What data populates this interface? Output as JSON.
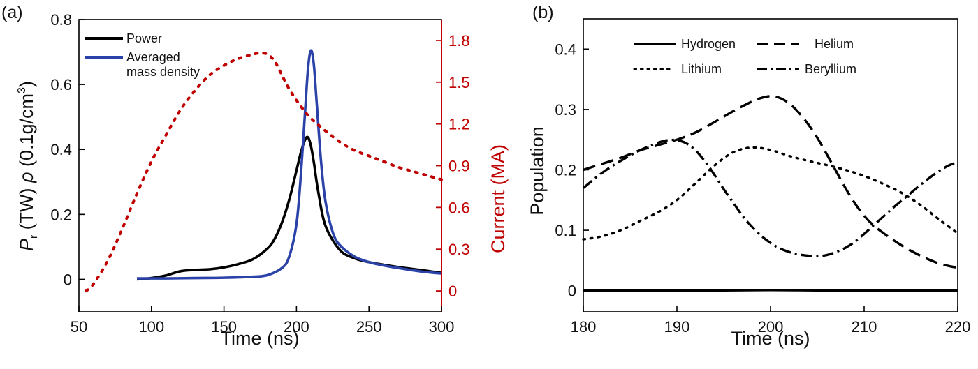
{
  "chart_data": [
    {
      "type": "line",
      "panel_label": "(a)",
      "xlabel": "Time (ns)",
      "ylabel_parts": [
        "P",
        "r",
        " (TW)  ",
        "ρ",
        " (0.1g/cm",
        "3",
        ")"
      ],
      "y2label": "Current (MA)",
      "xlim": [
        50,
        300
      ],
      "ylim": [
        -0.1,
        0.8
      ],
      "y2lim": [
        -0.15,
        1.95
      ],
      "xticks": [
        "50",
        "100",
        "150",
        "200",
        "250",
        "300"
      ],
      "xtick_values": [
        50,
        100,
        150,
        200,
        250,
        300
      ],
      "yticks": [
        "0",
        "0.2",
        "0.4",
        "0.6",
        "0.8"
      ],
      "ytick_values": [
        0,
        0.2,
        0.4,
        0.6,
        0.8
      ],
      "y2ticks": [
        "0",
        "0.3",
        "0.6",
        "0.9",
        "1.2",
        "1.5",
        "1.8"
      ],
      "y2tick_values": [
        0,
        0.3,
        0.6,
        0.9,
        1.2,
        1.5,
        1.8
      ],
      "legend": {
        "position": "top-left",
        "entries": [
          "Power",
          "Averaged mass density"
        ],
        "entry_lines": [
          [
            "Power"
          ],
          [
            "Averaged",
            "mass density"
          ]
        ]
      },
      "series": [
        {
          "name": "Power",
          "color": "#000000",
          "dash": "solid",
          "axis": "left",
          "x": [
            90,
            100,
            110,
            120,
            130,
            140,
            150,
            160,
            170,
            180,
            185,
            190,
            195,
            200,
            203,
            206,
            208,
            210,
            212,
            215,
            220,
            230,
            240,
            250,
            260,
            270,
            280,
            290,
            300
          ],
          "y": [
            0.0,
            0.004,
            0.012,
            0.025,
            0.029,
            0.031,
            0.037,
            0.047,
            0.062,
            0.095,
            0.125,
            0.175,
            0.245,
            0.335,
            0.39,
            0.43,
            0.437,
            0.41,
            0.36,
            0.27,
            0.165,
            0.09,
            0.065,
            0.053,
            0.045,
            0.038,
            0.032,
            0.026,
            0.02
          ]
        },
        {
          "name": "Averaged mass density",
          "color": "#2b43a8",
          "dash": "solid",
          "axis": "left",
          "x": [
            90,
            110,
            130,
            150,
            170,
            180,
            190,
            195,
            200,
            203,
            206,
            208,
            210,
            212,
            214,
            217,
            220,
            225,
            230,
            240,
            250,
            260,
            270,
            280,
            290,
            300
          ],
          "y": [
            0.003,
            0.003,
            0.004,
            0.005,
            0.008,
            0.013,
            0.035,
            0.07,
            0.17,
            0.32,
            0.52,
            0.65,
            0.705,
            0.66,
            0.54,
            0.36,
            0.24,
            0.145,
            0.105,
            0.07,
            0.053,
            0.043,
            0.035,
            0.028,
            0.022,
            0.018
          ]
        },
        {
          "name": "Current",
          "color": "#c00000",
          "dash": "dotted",
          "axis": "right",
          "x": [
            55,
            60,
            70,
            80,
            90,
            100,
            110,
            120,
            130,
            140,
            150,
            160,
            170,
            175,
            180,
            185,
            190,
            195,
            200,
            205,
            210,
            220,
            230,
            240,
            250,
            260,
            270,
            280,
            290,
            300
          ],
          "y": [
            0.0,
            0.05,
            0.22,
            0.45,
            0.7,
            0.93,
            1.12,
            1.3,
            1.44,
            1.55,
            1.62,
            1.67,
            1.7,
            1.71,
            1.7,
            1.65,
            1.55,
            1.45,
            1.37,
            1.3,
            1.24,
            1.15,
            1.07,
            1.01,
            0.97,
            0.93,
            0.89,
            0.86,
            0.83,
            0.8
          ]
        }
      ]
    },
    {
      "type": "line",
      "panel_label": "(b)",
      "xlabel": "Time (ns)",
      "ylabel": "Population",
      "xlim": [
        180,
        220
      ],
      "ylim": [
        -0.035,
        0.45
      ],
      "xticks": [
        "180",
        "190",
        "200",
        "210",
        "220"
      ],
      "xtick_values": [
        180,
        190,
        200,
        210,
        220
      ],
      "yticks": [
        "0",
        "0.1",
        "0.2",
        "0.3",
        "0.4"
      ],
      "ytick_values": [
        0,
        0.1,
        0.2,
        0.3,
        0.4
      ],
      "legend": {
        "position": "top",
        "columns": 2,
        "entries": [
          "Hydrogen",
          "Helium",
          "Lithium",
          "Beryllium"
        ]
      },
      "series": [
        {
          "name": "Hydrogen",
          "color": "#000000",
          "dash": "solid",
          "x": [
            180,
            185,
            190,
            195,
            200,
            205,
            210,
            215,
            220
          ],
          "y": [
            0.0,
            0.0,
            0.0,
            0.0005,
            0.001,
            0.0005,
            0.0,
            0.0,
            0.0
          ]
        },
        {
          "name": "Helium",
          "color": "#000000",
          "dash": "dashed",
          "x": [
            180,
            182,
            184,
            186,
            188,
            190,
            192,
            194,
            196,
            198,
            199,
            200,
            201,
            202,
            203,
            204,
            205,
            206,
            207,
            208,
            209,
            210,
            211,
            212,
            213,
            214,
            215,
            216,
            217,
            218,
            219,
            220
          ],
          "y": [
            0.2,
            0.21,
            0.22,
            0.232,
            0.241,
            0.25,
            0.262,
            0.279,
            0.297,
            0.313,
            0.319,
            0.322,
            0.319,
            0.31,
            0.295,
            0.276,
            0.253,
            0.226,
            0.198,
            0.17,
            0.145,
            0.124,
            0.108,
            0.096,
            0.085,
            0.075,
            0.066,
            0.058,
            0.051,
            0.045,
            0.041,
            0.038
          ]
        },
        {
          "name": "Lithium",
          "color": "#000000",
          "dash": "dotted",
          "x": [
            180,
            182,
            184,
            186,
            188,
            190,
            192,
            194,
            196,
            198,
            200,
            202,
            204,
            206,
            208,
            210,
            212,
            214,
            216,
            218,
            220
          ],
          "y": [
            0.085,
            0.09,
            0.1,
            0.115,
            0.13,
            0.15,
            0.178,
            0.207,
            0.229,
            0.237,
            0.233,
            0.223,
            0.215,
            0.208,
            0.2,
            0.19,
            0.177,
            0.162,
            0.142,
            0.118,
            0.095
          ]
        },
        {
          "name": "Beryllium",
          "color": "#000000",
          "dash": "dashdot",
          "x": [
            180,
            182,
            184,
            186,
            188,
            189,
            190,
            191,
            192,
            193,
            194,
            195,
            196,
            197,
            198,
            199,
            200,
            201,
            202,
            203,
            204,
            205,
            206,
            207,
            208,
            209,
            210,
            211,
            212,
            213,
            214,
            215,
            216,
            217,
            218,
            219,
            220
          ],
          "y": [
            0.17,
            0.195,
            0.215,
            0.232,
            0.245,
            0.249,
            0.249,
            0.244,
            0.232,
            0.214,
            0.192,
            0.168,
            0.146,
            0.124,
            0.106,
            0.091,
            0.079,
            0.07,
            0.064,
            0.06,
            0.058,
            0.057,
            0.059,
            0.064,
            0.071,
            0.081,
            0.094,
            0.108,
            0.122,
            0.136,
            0.149,
            0.162,
            0.175,
            0.187,
            0.198,
            0.207,
            0.213
          ]
        }
      ]
    }
  ]
}
